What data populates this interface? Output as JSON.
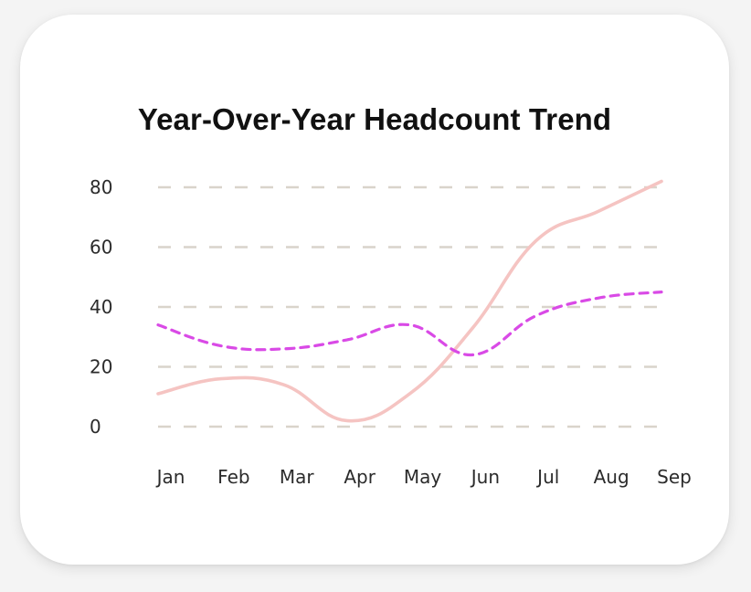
{
  "chart_data": {
    "type": "line",
    "title": "Year-Over-Year Headcount Trend",
    "xlabel": "",
    "ylabel": "",
    "categories": [
      "Jan",
      "Feb",
      "Mar",
      "Apr",
      "May",
      "Jun",
      "Jul",
      "Aug",
      "Sep"
    ],
    "ylim": [
      0,
      80
    ],
    "yticks": [
      0,
      20,
      40,
      60,
      80
    ],
    "grid": true,
    "legend": "none",
    "series": [
      {
        "values": [
          11,
          16,
          14,
          2,
          11,
          33,
          62,
          72,
          82
        ],
        "color": "#f5c4c2",
        "style": "solid"
      },
      {
        "values": [
          34,
          27,
          26,
          29,
          34,
          24,
          37,
          43,
          45
        ],
        "color": "#d94ae6",
        "style": "dashed"
      }
    ]
  },
  "colors": {
    "grid": "#d9d4cb",
    "card": "#ffffff",
    "background": "#f4f4f4"
  }
}
